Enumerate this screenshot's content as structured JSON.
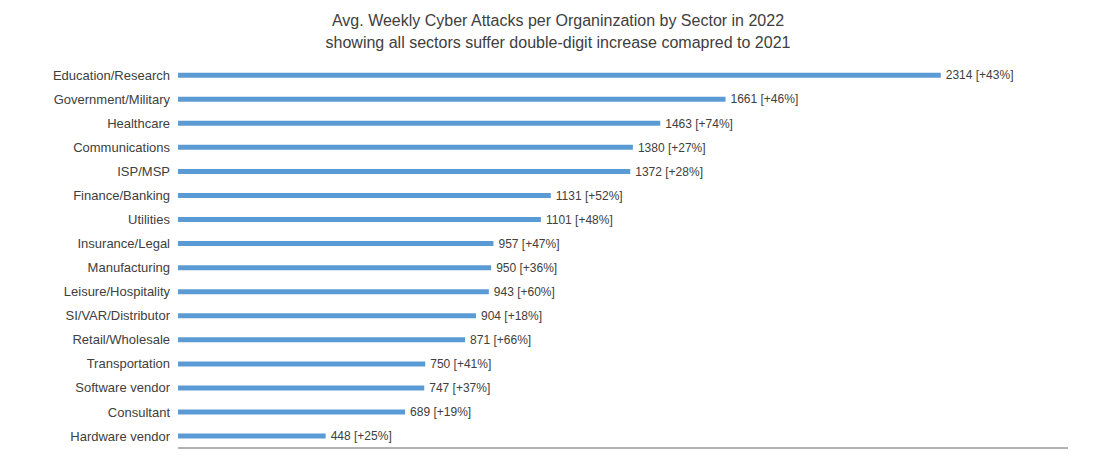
{
  "chart_data": {
    "type": "bar",
    "title": "Avg. Weekly Cyber Attacks per Organinzation by Sector in 2022",
    "subtitle": "showing all sectors suffer double-digit increase comapred to 2021",
    "orientation": "horizontal",
    "categories": [
      "Hardware vendor",
      "Consultant",
      "Software vendor",
      "Transportation",
      "Retail/Wholesale",
      "SI/VAR/Distributor",
      "Leisure/Hospitality",
      "Manufacturing",
      "Insurance/Legal",
      "Utilities",
      "Finance/Banking",
      "ISP/MSP",
      "Communications",
      "Healthcare",
      "Government/Military",
      "Education/Research"
    ],
    "values": [
      448,
      689,
      747,
      750,
      871,
      904,
      943,
      950,
      957,
      1101,
      1131,
      1372,
      1380,
      1463,
      1661,
      2314
    ],
    "value_labels": [
      "448 [+25%]",
      "689 [+19%]",
      "747 [+37%]",
      "750 [+41%]",
      "871 [+66%]",
      "904 [+18%]",
      "943 [+60%]",
      "950 [+36%]",
      "957 [+47%]",
      "1101 [+48%]",
      "1131 [+52%]",
      "1372 [+28%]",
      "1380 [+27%]",
      "1463 [+74%]",
      "1661 [+46%]",
      "2314 [+43%]"
    ],
    "data_labels": true,
    "color": "#5b9bd5",
    "xlim": [
      0,
      2700
    ],
    "tick_labels": "y",
    "grid": false
  }
}
